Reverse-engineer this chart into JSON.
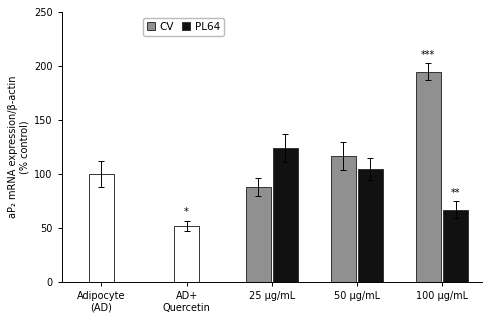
{
  "categories": [
    "Adipocyte\n(AD)",
    "AD+\nQuercetin",
    "25 μg/mL",
    "50 μg/mL",
    "100 μg/mL"
  ],
  "cv_values": [
    100,
    52,
    88,
    117,
    195
  ],
  "cv_errors": [
    12,
    5,
    8,
    13,
    8
  ],
  "pl64_values": [
    null,
    null,
    124,
    105,
    67
  ],
  "pl64_errors": [
    null,
    null,
    13,
    10,
    8
  ],
  "cv_colors_per_group": [
    "white",
    "white",
    "#909090",
    "#909090",
    "#909090"
  ],
  "pl64_color": "#111111",
  "bar_width": 0.22,
  "ylim": [
    0,
    250
  ],
  "yticks": [
    0,
    50,
    100,
    150,
    200,
    250
  ],
  "ylabel": "aP₂ mRNA expression/β-actin\n(% control)",
  "legend_labels": [
    "CV",
    "PL64"
  ],
  "significance": {
    "AD_Quercetin_cv": "*",
    "100_cv": "***",
    "100_pl64": "**"
  },
  "sig_fontsize": 7,
  "axis_fontsize": 7,
  "tick_fontsize": 7,
  "legend_fontsize": 7.5,
  "edgecolor": "#333333",
  "background_color": "#ffffff"
}
